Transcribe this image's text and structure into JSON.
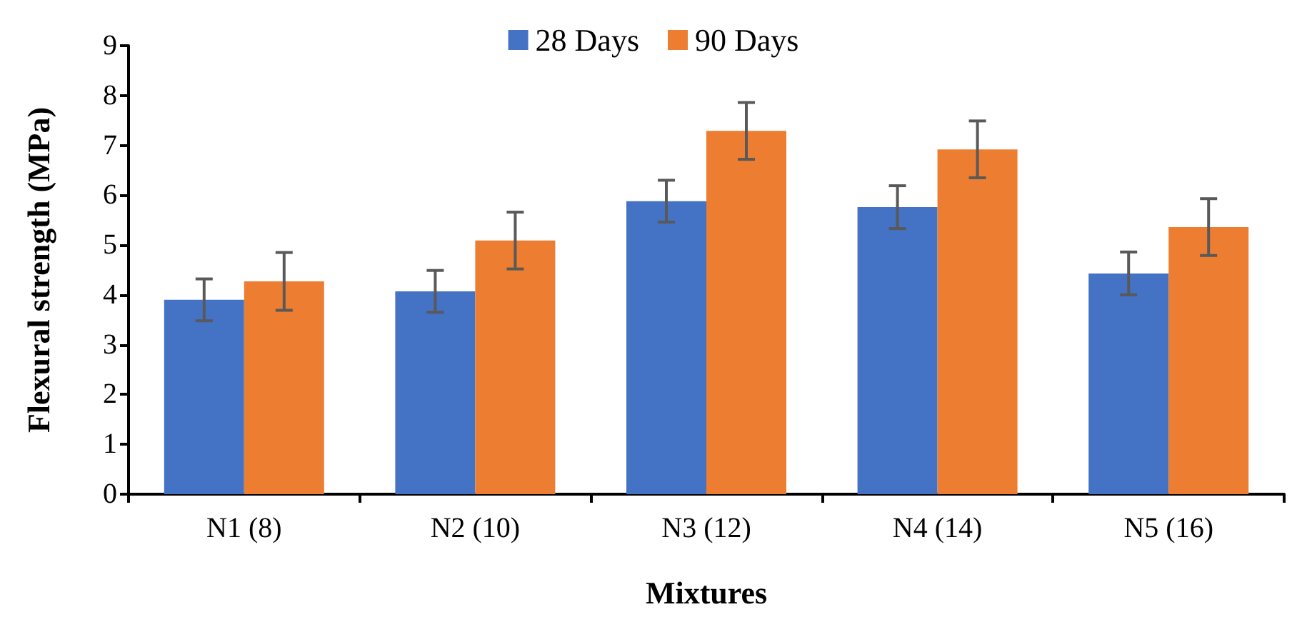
{
  "chart_data": {
    "type": "bar",
    "xlabel": "Mixtures",
    "ylabel": "Flexural strength (MPa)",
    "categories": [
      "N1 (8)",
      "N2 (10)",
      "N3 (12)",
      "N4 (14)",
      "N5 (16)"
    ],
    "series": [
      {
        "name": "28 Days",
        "color": "#4472c4",
        "values": [
          3.9,
          4.07,
          5.88,
          5.76,
          4.43
        ],
        "errors": [
          0.42,
          0.42,
          0.42,
          0.43,
          0.43
        ]
      },
      {
        "name": "90 Days",
        "color": "#ed7d31",
        "values": [
          4.27,
          5.09,
          7.29,
          6.92,
          5.36
        ],
        "errors": [
          0.58,
          0.57,
          0.57,
          0.57,
          0.57
        ]
      }
    ],
    "ylim": [
      0,
      9
    ],
    "yticks": [
      0,
      1,
      2,
      3,
      4,
      5,
      6,
      7,
      8,
      9
    ],
    "grid": false,
    "legend": "top"
  }
}
